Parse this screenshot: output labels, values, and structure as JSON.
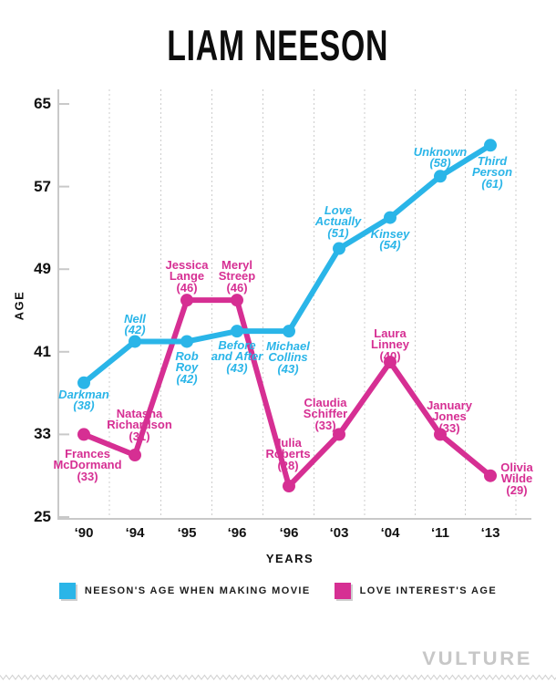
{
  "footer": {
    "logo": "VULTURE"
  },
  "chart_data": {
    "type": "line",
    "title": "LIAM NEESON",
    "xlabel": "YEARS",
    "ylabel": "AGE",
    "categories": [
      "‘90",
      "‘94",
      "‘95",
      "‘96",
      "‘96",
      "‘03",
      "‘04",
      "‘11",
      "‘13"
    ],
    "yticks": [
      25,
      33,
      41,
      49,
      57,
      65
    ],
    "ylim": [
      25,
      65
    ],
    "grid": "vertical-dashed",
    "legend_position": "bottom",
    "colors": {
      "neeson": "#2ab5e8",
      "love_interest": "#d62f93",
      "axis": "#c9c9c9",
      "grid": "#cccccc"
    },
    "series": [
      {
        "id": "love_interest",
        "name": "LOVE INTEREST'S AGE",
        "color": "#d62f93",
        "values": [
          33,
          31,
          46,
          46,
          28,
          33,
          40,
          33,
          29
        ],
        "point_labels": [
          [
            "Frances",
            "McDormand",
            "(33)"
          ],
          [
            "Natasha",
            "Richardson",
            "(31)"
          ],
          [
            "Jessica",
            "Lange",
            "(46)"
          ],
          [
            "Meryl",
            "Streep",
            "(46)"
          ],
          [
            "Julia",
            "Roberts",
            "(28)"
          ],
          [
            "Claudia",
            "Schiffer",
            "(33)"
          ],
          [
            "Laura",
            "Linney",
            "(40)"
          ],
          [
            "January",
            "Jones",
            "(33)"
          ],
          [
            "Olivia",
            "Wilde",
            "(29)"
          ]
        ]
      },
      {
        "id": "neeson",
        "name": "NEESON'S AGE WHEN MAKING MOVIE",
        "color": "#2ab5e8",
        "values": [
          38,
          42,
          42,
          43,
          43,
          51,
          54,
          58,
          61
        ],
        "point_labels": [
          [
            "Darkman",
            "(38)"
          ],
          [
            "Nell",
            "(42)"
          ],
          [
            "Rob",
            "Roy",
            "(42)"
          ],
          [
            "Before",
            "and After",
            "(43)"
          ],
          [
            "Michael",
            "Collins",
            "(43)"
          ],
          [
            "Love",
            "Actually",
            "(51)"
          ],
          [
            "Kinsey",
            "(54)"
          ],
          [
            "Unknown",
            "(58)"
          ],
          [
            "Third",
            "Person",
            "(61)"
          ]
        ]
      }
    ]
  }
}
